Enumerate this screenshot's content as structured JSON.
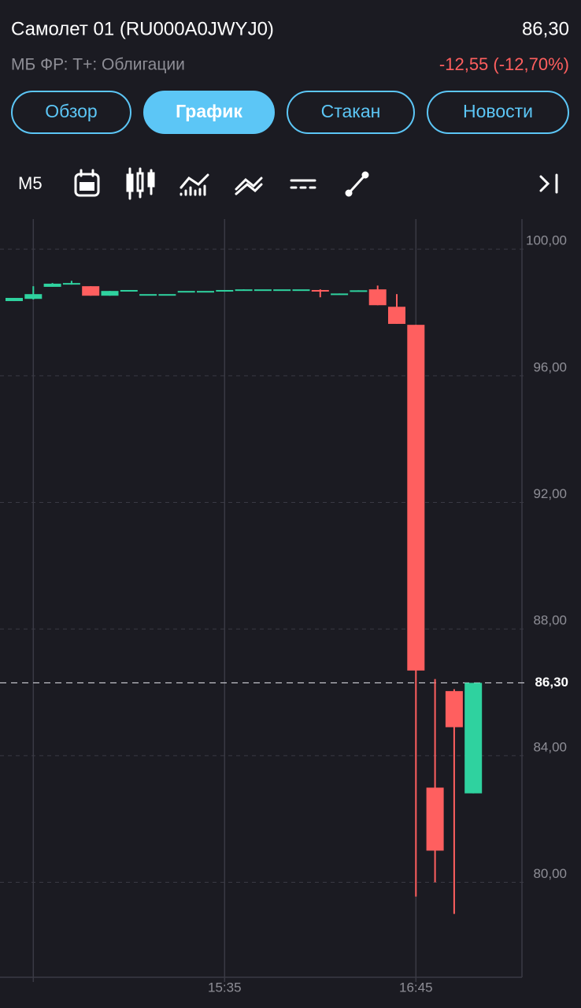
{
  "header": {
    "title": "Самолет 01 (RU000A0JWYJ0)",
    "price": "86,30",
    "subtitle": "МБ ФР: Т+: Облигации",
    "change": "-12,55 (-12,70%)"
  },
  "tabs": [
    "Обзор",
    "График",
    "Стакан",
    "Новости"
  ],
  "active_tab": 1,
  "toolbar": {
    "interval": "M5"
  },
  "chart_data": {
    "type": "candlestick",
    "categories": [
      null,
      null,
      null,
      null,
      null,
      null,
      null,
      null,
      null,
      null,
      null,
      "15:35",
      null,
      null,
      null,
      null,
      null,
      null,
      null,
      null,
      null,
      "16:45",
      null,
      null,
      null
    ],
    "open": [
      98.36,
      98.43,
      98.81,
      98.93,
      98.83,
      98.53,
      98.71,
      98.58,
      98.58,
      98.68,
      98.68,
      98.71,
      98.71,
      98.73,
      98.73,
      98.73,
      98.71,
      98.58,
      98.66,
      98.73,
      98.18,
      97.61,
      82.99,
      86.04,
      82.81
    ],
    "high": [
      98.46,
      98.83,
      98.93,
      99.0,
      98.83,
      98.68,
      98.71,
      98.58,
      98.58,
      98.68,
      98.68,
      98.71,
      98.73,
      98.73,
      98.73,
      98.73,
      98.73,
      98.6,
      98.7,
      98.85,
      98.58,
      97.61,
      86.42,
      86.1,
      86.3
    ],
    "low": [
      98.36,
      98.41,
      98.81,
      98.88,
      98.53,
      98.53,
      98.71,
      98.58,
      98.58,
      98.68,
      98.68,
      98.71,
      98.71,
      98.73,
      98.73,
      98.73,
      98.48,
      98.58,
      98.66,
      98.23,
      97.64,
      79.55,
      80.0,
      79.0,
      82.81
    ],
    "close": [
      98.46,
      98.58,
      98.91,
      98.93,
      98.53,
      98.68,
      98.71,
      98.58,
      98.58,
      98.68,
      98.68,
      98.71,
      98.73,
      98.73,
      98.73,
      98.73,
      98.66,
      98.6,
      98.7,
      98.23,
      97.64,
      86.69,
      81.0,
      84.9,
      86.3
    ],
    "up_color": "#2fd29f",
    "down_color": "#ff5f5f",
    "ylim": [
      77,
      100.95
    ],
    "yticks": [
      {
        "value": 80,
        "label": "80,00"
      },
      {
        "value": 84,
        "label": "84,00"
      },
      {
        "value": 88,
        "label": "88,00"
      },
      {
        "value": 92,
        "label": "92,00"
      },
      {
        "value": 96,
        "label": "96,00"
      },
      {
        "value": 100,
        "label": "100,00"
      }
    ],
    "last_price": {
      "value": 86.3,
      "label": "86,30"
    },
    "grid": true
  }
}
